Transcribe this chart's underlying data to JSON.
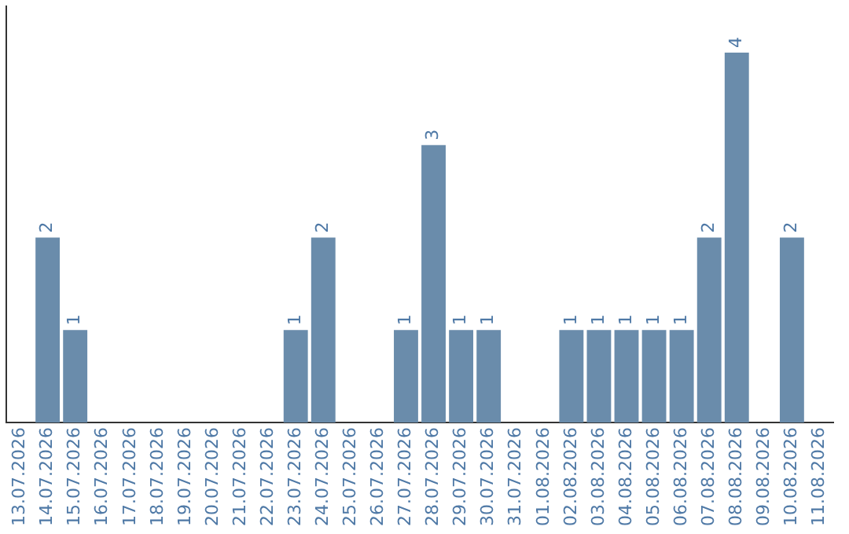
{
  "chart_data": {
    "type": "bar",
    "categories": [
      "13.07.2026",
      "14.07.2026",
      "15.07.2026",
      "16.07.2026",
      "17.07.2026",
      "18.07.2026",
      "19.07.2026",
      "20.07.2026",
      "21.07.2026",
      "22.07.2026",
      "23.07.2026",
      "24.07.2026",
      "25.07.2026",
      "26.07.2026",
      "27.07.2026",
      "28.07.2026",
      "29.07.2026",
      "30.07.2026",
      "31.07.2026",
      "01.08.2026",
      "02.08.2026",
      "03.08.2026",
      "04.08.2026",
      "05.08.2026",
      "06.08.2026",
      "07.08.2026",
      "08.08.2026",
      "09.08.2026",
      "10.08.2026",
      "11.08.2026"
    ],
    "values": [
      0,
      2,
      1,
      0,
      0,
      0,
      0,
      0,
      0,
      0,
      1,
      2,
      0,
      0,
      1,
      3,
      1,
      1,
      0,
      0,
      1,
      1,
      1,
      1,
      1,
      2,
      4,
      0,
      2,
      0
    ],
    "value_labels": [
      null,
      "2",
      "1",
      null,
      null,
      null,
      null,
      null,
      null,
      null,
      "1",
      "2",
      null,
      null,
      "1",
      "3",
      "1",
      "1",
      null,
      null,
      "1",
      "1",
      "1",
      "1",
      "1",
      "2",
      "4",
      null,
      "2",
      null
    ],
    "color": "#6a8cab",
    "grid": false,
    "legend": false,
    "tick_labels": "x"
  }
}
